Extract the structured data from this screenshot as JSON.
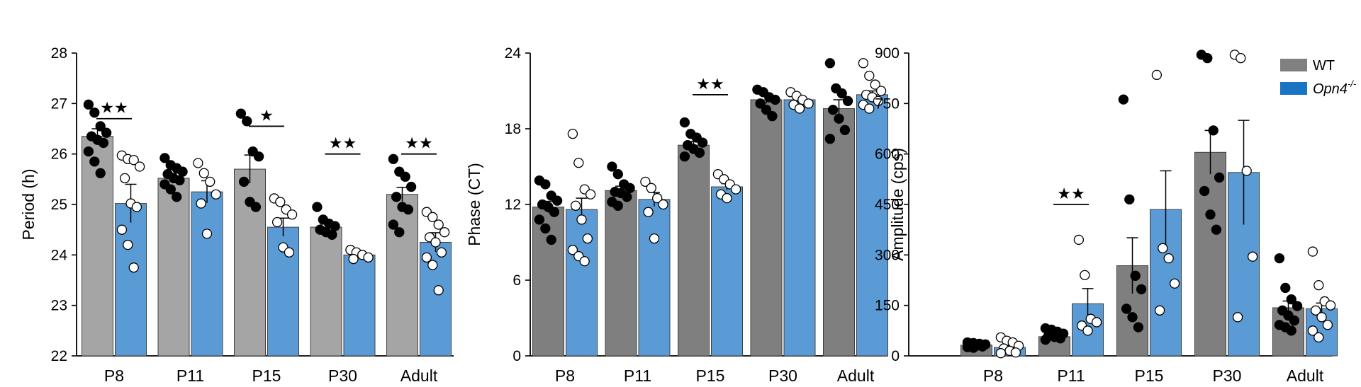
{
  "legend": {
    "entries": [
      {
        "label": "WT",
        "color": "#808080"
      },
      {
        "label": "Opn4",
        "superscript": "-/-",
        "color": "#1a74c4"
      }
    ]
  },
  "colors": {
    "wt_bar": "#a5a5a5",
    "wt_bar_dark": "#7f7f7f",
    "ko_bar": "#5b9bd5",
    "wt_dot": "#000000",
    "ko_dot": "#ffffff"
  },
  "chart_data": [
    {
      "type": "bar",
      "ylabel": "Period (h)",
      "ylim": [
        22,
        28
      ],
      "yticks": [
        22,
        23,
        24,
        25,
        26,
        27,
        28
      ],
      "categories": [
        "P8",
        "P11",
        "P15",
        "P30",
        "Adult"
      ],
      "series": [
        {
          "name": "WT",
          "values": [
            26.35,
            25.52,
            25.7,
            24.55,
            25.2
          ],
          "errors": [
            0.15,
            0.1,
            0.28,
            0.06,
            0.14
          ],
          "points": [
            [
              26.98,
              26.82,
              26.55,
              26.42,
              26.35,
              26.28,
              26.22,
              26.05,
              25.85,
              25.62
            ],
            [
              25.92,
              25.78,
              25.72,
              25.65,
              25.6,
              25.52,
              25.48,
              25.4,
              25.3,
              25.15
            ],
            [
              26.8,
              26.65,
              26.05,
              25.95,
              25.45,
              25.05,
              24.95
            ],
            [
              24.95,
              24.7,
              24.62,
              24.57,
              24.5,
              24.45,
              24.4
            ],
            [
              25.9,
              25.65,
              25.55,
              25.35,
              25.15,
              24.95,
              24.9,
              24.6,
              24.45
            ]
          ]
        },
        {
          "name": "Opn4-/-",
          "values": [
            25.02,
            25.25,
            24.55,
            24.0,
            24.25
          ],
          "errors": [
            0.38,
            0.22,
            0.18,
            0.04,
            0.19
          ],
          "points": [
            [
              25.97,
              25.9,
              25.88,
              25.75,
              25.52,
              25.02,
              24.95,
              24.5,
              24.2,
              23.75
            ],
            [
              25.82,
              25.62,
              25.45,
              25.2,
              25.02,
              24.42
            ],
            [
              25.12,
              25.05,
              24.9,
              24.8,
              24.65,
              24.15,
              24.05
            ],
            [
              24.1,
              24.05,
              24.0,
              23.95,
              23.92
            ],
            [
              24.85,
              24.75,
              24.6,
              24.45,
              24.35,
              24.25,
              24.05,
              23.95,
              23.8,
              23.3
            ]
          ]
        }
      ],
      "significance": [
        {
          "category": "P8",
          "stars": "★★",
          "y": 26.7
        },
        {
          "category": "P15",
          "stars": "★",
          "y": 26.55
        },
        {
          "category": "P30",
          "stars": "★★",
          "y": 26.0
        },
        {
          "category": "Adult",
          "stars": "★★",
          "y": 26.0
        }
      ]
    },
    {
      "type": "bar",
      "ylabel": "Phase (CT)",
      "ylim": [
        0,
        24
      ],
      "yticks": [
        0,
        6,
        12,
        18,
        24
      ],
      "categories": [
        "P8",
        "P11",
        "P15",
        "P30",
        "Adult"
      ],
      "series": [
        {
          "name": "WT",
          "values": [
            11.8,
            13.1,
            16.7,
            20.3,
            19.6
          ],
          "errors": [
            0.45,
            0.35,
            0.3,
            0.3,
            0.7
          ],
          "points": [
            [
              13.9,
              13.6,
              12.7,
              12.3,
              12.0,
              11.8,
              11.4,
              10.8,
              10.1,
              9.2
            ],
            [
              15.0,
              14.4,
              13.6,
              13.3,
              13.0,
              12.9,
              12.6,
              12.2,
              11.9
            ],
            [
              18.5,
              17.6,
              17.3,
              16.9,
              16.7,
              16.4,
              16.1,
              15.8
            ],
            [
              21.1,
              20.9,
              20.5,
              20.3,
              20.0,
              19.5,
              19.0
            ],
            [
              23.2,
              21.2,
              20.8,
              20.2,
              19.5,
              18.8,
              17.9,
              17.2
            ]
          ]
        },
        {
          "name": "Opn4-/-",
          "values": [
            11.6,
            12.4,
            13.4,
            20.3,
            20.7
          ],
          "errors": [
            0.9,
            0.55,
            0.25,
            0.2,
            0.3
          ],
          "points": [
            [
              17.6,
              15.3,
              13.2,
              12.8,
              11.9,
              10.8,
              9.3,
              8.4,
              7.9,
              7.5
            ],
            [
              13.8,
              13.3,
              12.5,
              12.0,
              11.4,
              9.3
            ],
            [
              14.4,
              14.0,
              13.6,
              13.2,
              12.8,
              12.5
            ],
            [
              20.9,
              20.6,
              20.3,
              20.0,
              19.9,
              19.6
            ],
            [
              23.2,
              22.2,
              21.5,
              21.0,
              20.7,
              20.5,
              20.2,
              19.9,
              19.6
            ]
          ]
        }
      ],
      "significance": [
        {
          "category": "P15",
          "stars": "★★",
          "y": 20.7
        }
      ]
    },
    {
      "type": "bar",
      "ylabel": "Amplitude (cps)",
      "ylim": [
        0,
        900
      ],
      "yticks": [
        0,
        150,
        300,
        450,
        600,
        750,
        900
      ],
      "categories": [
        "P8",
        "P11",
        "P15",
        "P30",
        "Adult"
      ],
      "series": [
        {
          "name": "WT",
          "values": [
            32,
            57,
            268,
            605,
            143
          ],
          "errors": [
            4,
            6,
            83,
            65,
            20
          ],
          "points": [
            [
              40,
              38,
              36,
              34,
              32,
              30,
              28,
              26,
              24
            ],
            [
              82,
              78,
              72,
              66,
              60,
              56,
              52,
              48
            ],
            [
              762,
              465,
              238,
              198,
              140,
              115,
              85
            ],
            [
              895,
              885,
              670,
              530,
              490,
              420,
              375
            ],
            [
              290,
              202,
              168,
              148,
              135,
              120,
              105,
              92,
              85,
              75
            ]
          ]
        },
        {
          "name": "Opn4-/-",
          "values": [
            25,
            155,
            435,
            545,
            140
          ],
          "errors": [
            6,
            45,
            115,
            155,
            17
          ],
          "points": [
            [
              55,
              45,
              40,
              30,
              22,
              15,
              10,
              8
            ],
            [
              345,
              240,
              110,
              100,
              90,
              75
            ],
            [
              835,
              320,
              290,
              215,
              135
            ],
            [
              895,
              885,
              550,
              295,
              115
            ],
            [
              310,
              210,
              162,
              150,
              135,
              115,
              92,
              75,
              55
            ]
          ]
        }
      ],
      "significance": [
        {
          "category": "P11",
          "stars": "★★",
          "y": 450
        }
      ]
    }
  ]
}
